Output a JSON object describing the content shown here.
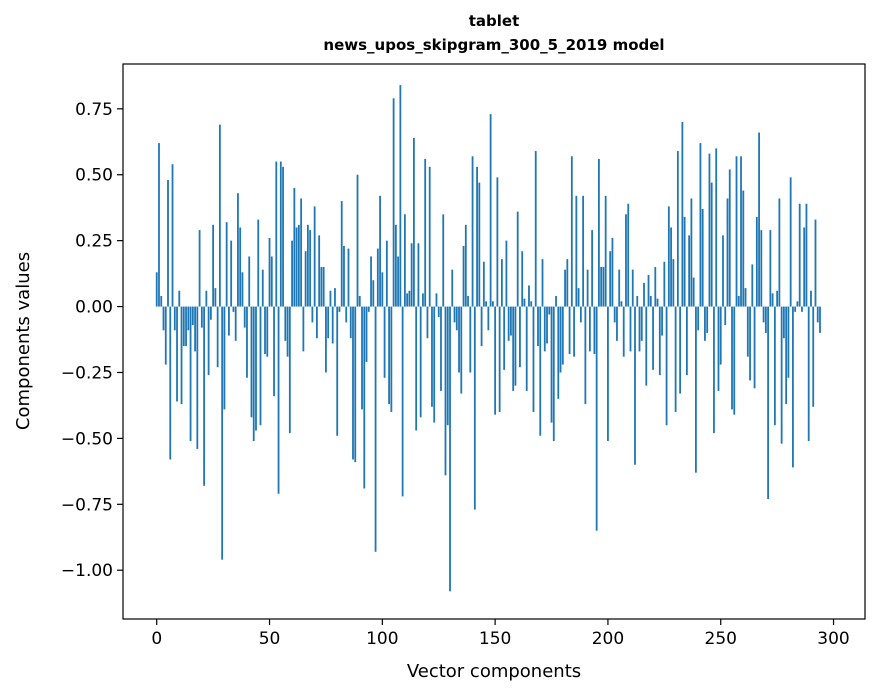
{
  "chart_data": {
    "type": "bar",
    "title": "tablet",
    "subtitle": "news_upos_skipgram_300_5_2019 model",
    "xlabel": "Vector components",
    "ylabel": "Components values",
    "xlim": [
      -14.95,
      313.95
    ],
    "ylim": [
      -1.185,
      0.92
    ],
    "xticks": [
      0,
      50,
      100,
      150,
      200,
      250,
      300
    ],
    "yticks": [
      -1.0,
      -0.75,
      -0.5,
      -0.25,
      0.0,
      0.25,
      0.5,
      0.75
    ],
    "ytick_labels": [
      "−1.00",
      "−0.75",
      "−0.50",
      "−0.25",
      "0.00",
      "0.25",
      "0.50",
      "0.75"
    ],
    "bar_color": "#1f77b4",
    "values": [
      0.13,
      0.62,
      0.04,
      -0.09,
      -0.22,
      0.48,
      -0.58,
      0.54,
      -0.09,
      -0.36,
      0.06,
      -0.37,
      -0.15,
      -0.15,
      -0.09,
      -0.51,
      -0.07,
      -0.17,
      -0.54,
      0.29,
      -0.08,
      -0.68,
      0.06,
      -0.26,
      -0.05,
      0.31,
      0.07,
      -0.23,
      0.69,
      -0.96,
      -0.39,
      0.32,
      -0.11,
      0.25,
      -0.02,
      -0.13,
      0.43,
      0.3,
      0.13,
      -0.08,
      -0.27,
      0.19,
      -0.42,
      -0.51,
      -0.47,
      0.33,
      -0.45,
      0.14,
      -0.18,
      -0.19,
      0.26,
      0.19,
      -0.34,
      0.55,
      -0.71,
      0.55,
      0.53,
      -0.13,
      -0.19,
      -0.48,
      0.25,
      0.45,
      0.3,
      0.31,
      0.41,
      -0.17,
      0.21,
      0.31,
      0.29,
      -0.06,
      0.38,
      -0.12,
      0.27,
      0.15,
      0.15,
      -0.25,
      -0.12,
      0.06,
      -0.14,
      0.07,
      -0.49,
      -0.02,
      0.4,
      0.23,
      -0.06,
      0.22,
      -0.12,
      -0.58,
      -0.59,
      0.5,
      0.04,
      -0.39,
      -0.69,
      -0.21,
      -0.02,
      0.19,
      0.1,
      -0.93,
      0.22,
      0.42,
      0.13,
      -0.27,
      0.25,
      -0.37,
      -0.4,
      0.79,
      0.31,
      0.19,
      0.84,
      -0.72,
      0.35,
      0.05,
      0.06,
      0.24,
      0.64,
      -0.47,
      0.24,
      -0.42,
      0.05,
      0.56,
      -0.12,
      0.53,
      -0.38,
      -0.44,
      0.05,
      -0.04,
      -0.32,
      0.35,
      -0.64,
      -0.45,
      -1.08,
      0.14,
      -0.06,
      -0.09,
      -0.25,
      -0.33,
      0.23,
      0.31,
      0.04,
      -0.25,
      0.57,
      -0.77,
      0.53,
      0.47,
      -0.15,
      0.17,
      0.02,
      -0.09,
      0.73,
      0.02,
      -0.41,
      0.49,
      -0.4,
      0.18,
      -0.24,
      0.25,
      -0.13,
      -0.11,
      -0.32,
      -0.3,
      0.36,
      -0.23,
      0.21,
      0.03,
      -0.32,
      0.08,
      0.02,
      -0.4,
      0.59,
      -0.15,
      -0.49,
      0.18,
      -0.17,
      -0.14,
      -0.03,
      -0.44,
      -0.51,
      0.04,
      -0.35,
      -0.25,
      -0.22,
      0.14,
      0.18,
      -0.18,
      0.57,
      -0.19,
      0.42,
      0.07,
      -0.06,
      0.42,
      -0.37,
      0.14,
      -0.17,
      0.29,
      -0.18,
      -0.85,
      0.56,
      0.15,
      0.15,
      0.42,
      -0.51,
      0.21,
      0.26,
      -0.06,
      -0.13,
      0.14,
      0.02,
      -0.19,
      0.35,
      0.39,
      -0.17,
      0.14,
      -0.6,
      0.04,
      -0.17,
      -0.13,
      0.09,
      -0.3,
      0.12,
      0.04,
      -0.24,
      0.15,
      0.03,
      -0.26,
      -0.11,
      0.17,
      -0.45,
      0.38,
      0.3,
      0.18,
      -0.4,
      0.59,
      -0.33,
      0.7,
      0.34,
      -0.26,
      0.27,
      0.41,
      0.11,
      -0.63,
      -0.09,
      0.62,
      0.37,
      -0.13,
      -0.1,
      0.58,
      0.47,
      -0.48,
      0.6,
      -0.32,
      -0.22,
      0.27,
      -0.07,
      0.41,
      0.52,
      -0.39,
      -0.41,
      0.57,
      0.04,
      0.57,
      0.44,
      0.07,
      -0.19,
      -0.28,
      0.16,
      -0.31,
      0.34,
      0.66,
      0.29,
      -0.06,
      -0.1,
      -0.73,
      0.29,
      0.05,
      -0.45,
      0.06,
      0.41,
      -0.52,
      -0.12,
      -0.37,
      -0.27,
      0.49,
      -0.61,
      -0.02,
      0.02,
      0.39,
      -0.02,
      0.3,
      0.39,
      -0.51,
      0.06,
      -0.38,
      0.33,
      -0.06,
      -0.1
    ]
  }
}
